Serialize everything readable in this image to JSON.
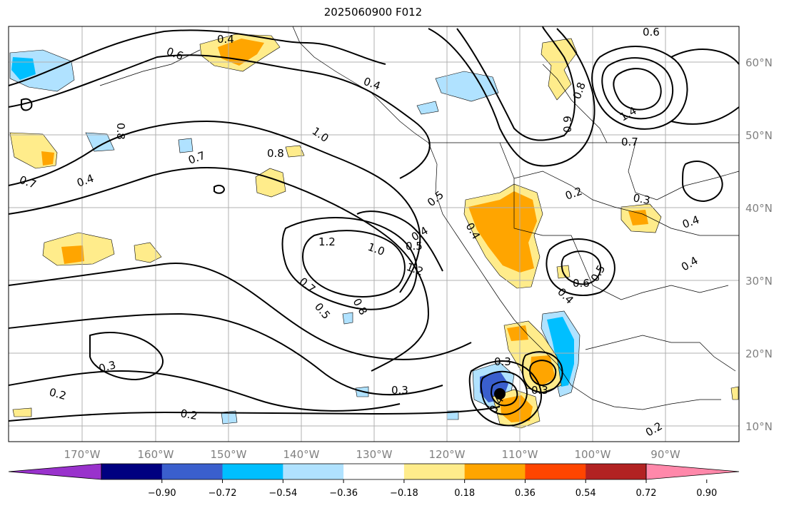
{
  "title": "2025060900 F012",
  "lon_ticks": [
    "170°W",
    "160°W",
    "150°W",
    "140°W",
    "130°W",
    "120°W",
    "110°W",
    "100°W",
    "90°W"
  ],
  "lat_ticks": [
    "60°N",
    "50°N",
    "40°N",
    "30°N",
    "20°N",
    "10°N"
  ],
  "colorbar": {
    "colors": [
      "#9932cc",
      "#000080",
      "#3a5fcd",
      "#00bfff",
      "#b0e2ff",
      "#ffffff",
      "#ffec8b",
      "#ffa500",
      "#ff4500",
      "#b22222",
      "#ff88aa"
    ],
    "tick_labels": [
      "−0.90",
      "−0.72",
      "−0.54",
      "−0.36",
      "−0.18",
      "0.18",
      "0.36",
      "0.54",
      "0.72",
      "0.90"
    ]
  },
  "contour_labels": [
    {
      "text": "0.4"
    },
    {
      "text": "0.6"
    },
    {
      "text": "0.6"
    },
    {
      "text": "0.8"
    },
    {
      "text": "0.7"
    },
    {
      "text": "0.4"
    },
    {
      "text": "0.4"
    },
    {
      "text": "1.0"
    },
    {
      "text": "0.8"
    },
    {
      "text": "0.7"
    },
    {
      "text": "0.4"
    },
    {
      "text": "0.5"
    },
    {
      "text": "1.2"
    },
    {
      "text": "1.0"
    },
    {
      "text": "0.5"
    },
    {
      "text": "1.2"
    },
    {
      "text": "0.4"
    },
    {
      "text": "0.7"
    },
    {
      "text": "0.5"
    },
    {
      "text": "0.8"
    },
    {
      "text": "0.3"
    },
    {
      "text": "0.2"
    },
    {
      "text": "0.2"
    },
    {
      "text": "0.3"
    },
    {
      "text": "0.3"
    },
    {
      "text": "0.4"
    },
    {
      "text": "0.3"
    },
    {
      "text": "0.6"
    },
    {
      "text": "0.5"
    },
    {
      "text": "0.4"
    },
    {
      "text": "0.2"
    },
    {
      "text": "0.3"
    },
    {
      "text": "0.4"
    },
    {
      "text": "0.4"
    },
    {
      "text": "0.7"
    },
    {
      "text": "1.4"
    },
    {
      "text": "0.8"
    },
    {
      "text": "0.9"
    },
    {
      "text": "0.2"
    }
  ]
}
